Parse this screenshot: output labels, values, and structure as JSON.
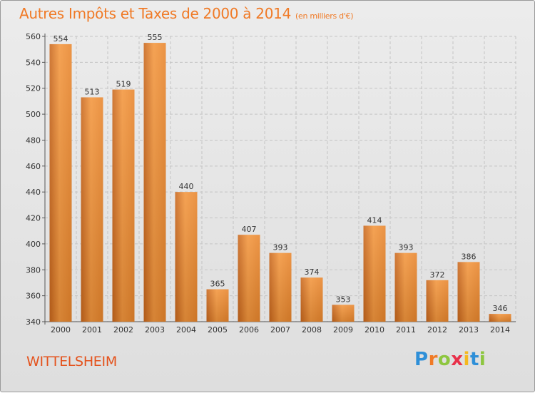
{
  "chart_data": {
    "type": "bar",
    "title": "Autres Impôts et Taxes de 2000 à 2014",
    "subtitle": "(en milliers d'€)",
    "categories": [
      "2000",
      "2001",
      "2002",
      "2003",
      "2004",
      "2005",
      "2006",
      "2007",
      "2008",
      "2009",
      "2010",
      "2011",
      "2012",
      "2013",
      "2014"
    ],
    "values": [
      554,
      513,
      519,
      555,
      440,
      365,
      407,
      393,
      374,
      353,
      414,
      393,
      372,
      386,
      346
    ],
    "ylim": [
      340,
      560
    ],
    "yticks": [
      340,
      360,
      380,
      400,
      420,
      440,
      460,
      480,
      500,
      520,
      540,
      560
    ],
    "grid": true,
    "bar_color": "#f0913a"
  },
  "location": "WITTELSHEIM",
  "logo": {
    "text": "Proxiti",
    "letters": [
      {
        "ch": "P",
        "color": "#2e8fd8"
      },
      {
        "ch": "r",
        "color": "#f07a26"
      },
      {
        "ch": "o",
        "color": "#8dc63f"
      },
      {
        "ch": "x",
        "color": "#e8304a"
      },
      {
        "ch": "i",
        "color": "#f5b81e"
      },
      {
        "ch": "t",
        "color": "#2e8fd8"
      },
      {
        "ch": "i",
        "color": "#8dc63f"
      }
    ]
  }
}
